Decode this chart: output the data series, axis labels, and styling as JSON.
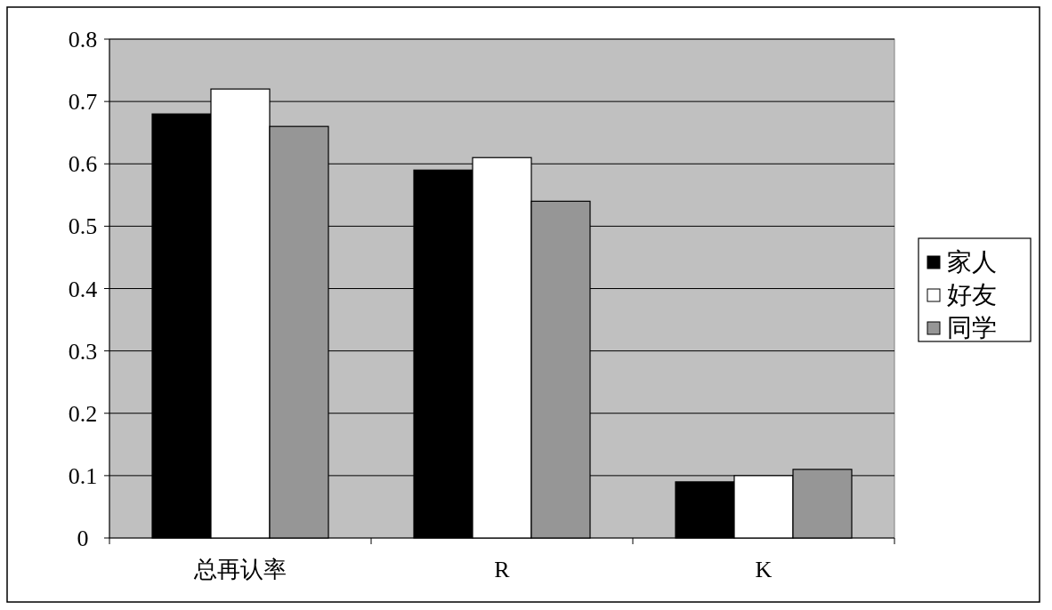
{
  "chart_data": {
    "type": "bar",
    "categories": [
      "总再认率",
      "R",
      "K"
    ],
    "series": [
      {
        "name": "家人",
        "color": "#000000",
        "values": [
          0.68,
          0.59,
          0.09
        ]
      },
      {
        "name": "好友",
        "color": "#ffffff",
        "values": [
          0.72,
          0.61,
          0.1
        ]
      },
      {
        "name": "同学",
        "color": "#969696",
        "values": [
          0.66,
          0.54,
          0.11
        ]
      }
    ],
    "ylim": [
      0,
      0.8
    ],
    "yticks": [
      0,
      0.1,
      0.2,
      0.3,
      0.4,
      0.5,
      0.6,
      0.7,
      0.8
    ],
    "grid": "y",
    "legend": "right"
  }
}
